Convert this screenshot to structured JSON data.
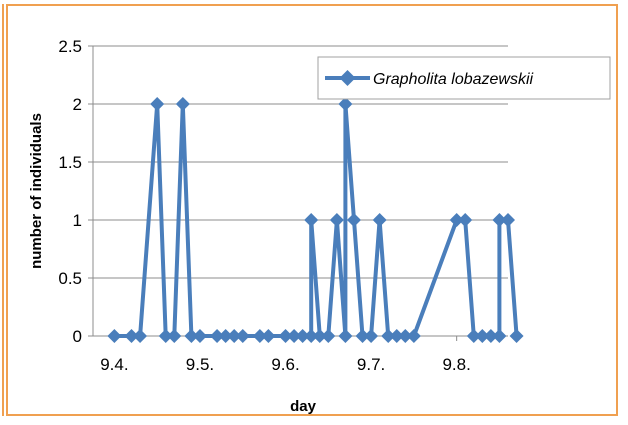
{
  "chart_data": {
    "type": "line",
    "title": "",
    "xlabel": "day",
    "ylabel": "number of individuals",
    "xlim": [
      9.375,
      9.86
    ],
    "ylim": [
      0,
      2.5
    ],
    "x_ticks": [
      {
        "value": 9.4,
        "label": "9.4."
      },
      {
        "value": 9.5,
        "label": "9.5."
      },
      {
        "value": 9.6,
        "label": "9.6."
      },
      {
        "value": 9.7,
        "label": "9.7."
      },
      {
        "value": 9.8,
        "label": "9.8."
      }
    ],
    "y_ticks": [
      {
        "value": 0,
        "label": "0"
      },
      {
        "value": 0.5,
        "label": "0.5"
      },
      {
        "value": 1,
        "label": "1"
      },
      {
        "value": 1.5,
        "label": "1.5"
      },
      {
        "value": 2,
        "label": "2"
      },
      {
        "value": 2.5,
        "label": "2.5"
      }
    ],
    "grid": {
      "horizontal": true,
      "vertical": false
    },
    "legend_position": "top-right",
    "series": [
      {
        "name": "Grapholita lobazewskii",
        "color": "#4a7ebb",
        "marker": "diamond",
        "points": [
          {
            "x": 9.4,
            "y": 0
          },
          {
            "x": 9.42,
            "y": 0
          },
          {
            "x": 9.43,
            "y": 0
          },
          {
            "x": 9.45,
            "y": 2
          },
          {
            "x": 9.46,
            "y": 0
          },
          {
            "x": 9.47,
            "y": 0
          },
          {
            "x": 9.48,
            "y": 2
          },
          {
            "x": 9.49,
            "y": 0
          },
          {
            "x": 9.5,
            "y": 0
          },
          {
            "x": 9.52,
            "y": 0
          },
          {
            "x": 9.53,
            "y": 0
          },
          {
            "x": 9.54,
            "y": 0
          },
          {
            "x": 9.55,
            "y": 0
          },
          {
            "x": 9.57,
            "y": 0
          },
          {
            "x": 9.58,
            "y": 0
          },
          {
            "x": 9.6,
            "y": 0
          },
          {
            "x": 9.61,
            "y": 0
          },
          {
            "x": 9.62,
            "y": 0
          },
          {
            "x": 9.63,
            "y": 0
          },
          {
            "x": 9.63,
            "y": 1
          },
          {
            "x": 9.64,
            "y": 0
          },
          {
            "x": 9.65,
            "y": 0
          },
          {
            "x": 9.66,
            "y": 1
          },
          {
            "x": 9.67,
            "y": 0
          },
          {
            "x": 9.67,
            "y": 2
          },
          {
            "x": 9.68,
            "y": 1
          },
          {
            "x": 9.69,
            "y": 0
          },
          {
            "x": 9.7,
            "y": 0
          },
          {
            "x": 9.71,
            "y": 1
          },
          {
            "x": 9.72,
            "y": 0
          },
          {
            "x": 9.73,
            "y": 0
          },
          {
            "x": 9.74,
            "y": 0
          },
          {
            "x": 9.75,
            "y": 0
          },
          {
            "x": 9.8,
            "y": 1
          },
          {
            "x": 9.81,
            "y": 1
          },
          {
            "x": 9.82,
            "y": 0
          },
          {
            "x": 9.83,
            "y": 0
          },
          {
            "x": 9.84,
            "y": 0
          },
          {
            "x": 9.85,
            "y": 0
          },
          {
            "x": 9.85,
            "y": 1
          },
          {
            "x": 9.86,
            "y": 1
          },
          {
            "x": 9.87,
            "y": 0
          }
        ]
      }
    ]
  }
}
